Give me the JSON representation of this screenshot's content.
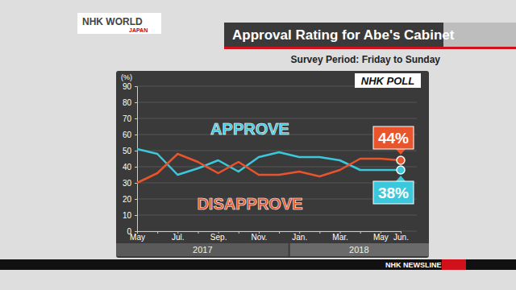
{
  "chart_data": {
    "type": "line",
    "title": "Approval Rating for Abe's Cabinet",
    "subtitle": "Survey Period: Friday to Sunday",
    "y_label": "(%)",
    "categories": [
      "May",
      null,
      "Jul.",
      null,
      "Sep.",
      null,
      "Nov.",
      null,
      "Jan.",
      null,
      "Mar.",
      null,
      "May",
      "Jun."
    ],
    "series": [
      {
        "name": "APPROVE",
        "color": "#3cc8dc",
        "values": [
          51,
          48,
          35,
          39,
          44,
          37,
          46,
          49,
          46,
          46,
          44,
          38,
          38,
          38
        ],
        "value_labels": [
          null,
          null,
          null,
          null,
          null,
          null,
          null,
          null,
          null,
          null,
          null,
          null,
          null,
          "38%"
        ]
      },
      {
        "name": "DISAPPROVE",
        "color": "#e8542c",
        "values": [
          30,
          36,
          48,
          43,
          36,
          43,
          35,
          35,
          37,
          34,
          38,
          45,
          45,
          44
        ],
        "value_labels": [
          null,
          null,
          null,
          null,
          null,
          null,
          null,
          null,
          null,
          null,
          null,
          null,
          null,
          "44%"
        ]
      }
    ],
    "ylim": [
      0,
      90
    ],
    "yticks": [
      0,
      10,
      20,
      30,
      40,
      50,
      60,
      70,
      80,
      90
    ],
    "grid": true,
    "data_labels": true,
    "annotations": [
      "NHK POLL",
      "2017",
      "2018",
      "NHK WORLD",
      "JAPAN",
      "NHK NEWSLINE"
    ]
  }
}
